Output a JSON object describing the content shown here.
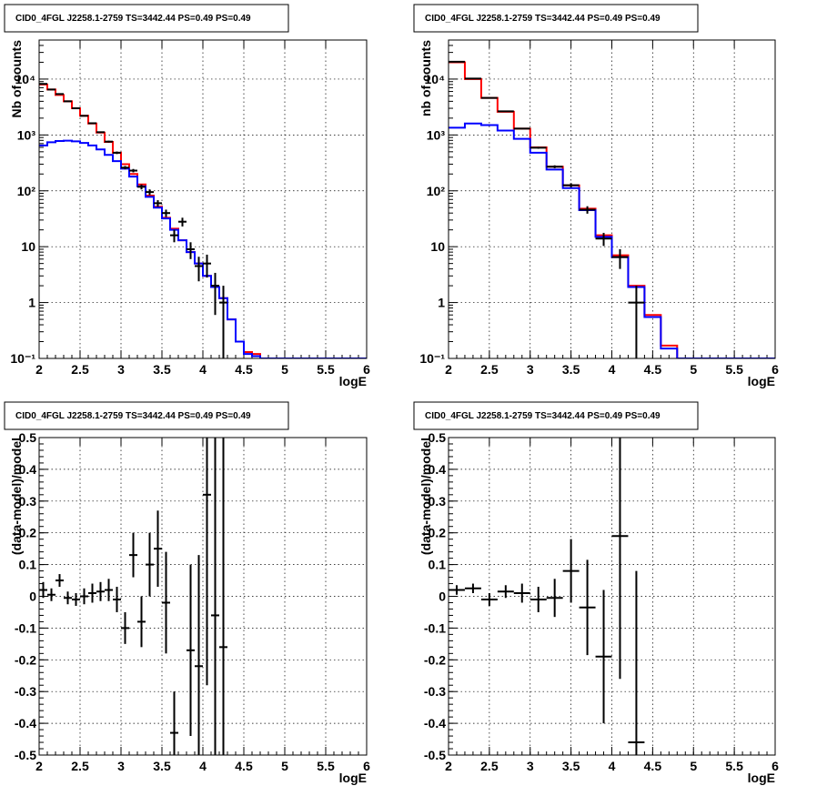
{
  "colors": {
    "model_total": "#ff0000",
    "model_source": "#0000ff",
    "data": "#000000"
  },
  "chart_data": [
    {
      "type": "line",
      "title": "CID0_4FGL J2258.1-2759 TS=3442.44 PS=0.49 PS=0.49",
      "xlabel": "logE",
      "ylabel": "Nb of counts",
      "xlim": [
        2,
        6
      ],
      "ylim": [
        0.1,
        50000
      ],
      "yscale": "log",
      "grid": true,
      "x_ticks": [
        "2",
        "2.5",
        "3",
        "3.5",
        "4",
        "4.5",
        "5",
        "5.5",
        "6"
      ],
      "y_ticks": [
        "10⁻¹",
        "1",
        "10",
        "10²",
        "10³",
        "10⁴"
      ],
      "series": [
        {
          "color": "red",
          "style": "step",
          "bin_edges": [
            2.0,
            2.1,
            2.2,
            2.3,
            2.4,
            2.5,
            2.6,
            2.7,
            2.8,
            2.9,
            3.0,
            3.1,
            3.2,
            3.3,
            3.4,
            3.5,
            3.6,
            3.7,
            3.8,
            3.9,
            4.0,
            4.1,
            4.2,
            4.3,
            4.4,
            4.5,
            4.6,
            4.7,
            4.8,
            4.9,
            5.0,
            5.1,
            5.2,
            5.3,
            5.4,
            5.5,
            5.6,
            5.7,
            5.8,
            5.9,
            6.0
          ],
          "values": [
            8000,
            6500,
            5200,
            4000,
            3000,
            2200,
            1600,
            1100,
            750,
            480,
            300,
            200,
            130,
            82,
            52,
            33,
            21,
            13,
            8,
            5,
            3,
            1.9,
            1.2,
            0.5,
            0.2,
            0.13,
            0.12,
            0.1,
            0.1,
            0.1,
            0.1,
            0.1,
            0.1,
            0.1,
            0.1,
            0.1,
            0.1,
            0.1,
            0.1,
            0.1
          ]
        },
        {
          "color": "blue",
          "style": "step",
          "bin_edges": [
            2.0,
            2.1,
            2.2,
            2.3,
            2.4,
            2.5,
            2.6,
            2.7,
            2.8,
            2.9,
            3.0,
            3.1,
            3.2,
            3.3,
            3.4,
            3.5,
            3.6,
            3.7,
            3.8,
            3.9,
            4.0,
            4.1,
            4.2,
            4.3,
            4.4,
            4.5,
            4.6,
            4.7,
            4.8,
            4.9,
            5.0,
            5.1,
            5.2,
            5.3,
            5.4,
            5.5,
            5.6,
            5.7,
            5.8,
            5.9,
            6.0
          ],
          "values": [
            650,
            740,
            780,
            790,
            770,
            720,
            650,
            550,
            440,
            340,
            250,
            180,
            120,
            78,
            50,
            32,
            20,
            13,
            8,
            5,
            3,
            1.9,
            1.2,
            0.5,
            0.2,
            0.12,
            0.11,
            0.1,
            0.1,
            0.1,
            0.1,
            0.1,
            0.1,
            0.1,
            0.1,
            0.1,
            0.1,
            0.1,
            0.1,
            0.1
          ]
        },
        {
          "color": "black",
          "style": "errorbar",
          "points": [
            {
              "x": 2.05,
              "y": 8200,
              "err": 100,
              "xerr": 0.05
            },
            {
              "x": 2.15,
              "y": 6500,
              "err": 90,
              "xerr": 0.05
            },
            {
              "x": 2.25,
              "y": 5400,
              "err": 80,
              "xerr": 0.05
            },
            {
              "x": 2.35,
              "y": 4000,
              "err": 70,
              "xerr": 0.05
            },
            {
              "x": 2.45,
              "y": 3000,
              "err": 60,
              "xerr": 0.05
            },
            {
              "x": 2.55,
              "y": 2200,
              "err": 50,
              "xerr": 0.05
            },
            {
              "x": 2.65,
              "y": 1620,
              "err": 45,
              "xerr": 0.05
            },
            {
              "x": 2.75,
              "y": 1120,
              "err": 35,
              "xerr": 0.05
            },
            {
              "x": 2.85,
              "y": 760,
              "err": 30,
              "xerr": 0.05
            },
            {
              "x": 2.95,
              "y": 480,
              "err": 25,
              "xerr": 0.05
            },
            {
              "x": 3.05,
              "y": 260,
              "err": 18,
              "xerr": 0.05
            },
            {
              "x": 3.15,
              "y": 230,
              "err": 16,
              "xerr": 0.05
            },
            {
              "x": 3.25,
              "y": 118,
              "err": 12,
              "xerr": 0.05
            },
            {
              "x": 3.35,
              "y": 95,
              "err": 11,
              "xerr": 0.05
            },
            {
              "x": 3.45,
              "y": 60,
              "err": 8,
              "xerr": 0.05
            },
            {
              "x": 3.55,
              "y": 40,
              "err": 6,
              "xerr": 0.05
            },
            {
              "x": 3.65,
              "y": 16,
              "err": 4,
              "xerr": 0.05
            },
            {
              "x": 3.75,
              "y": 28,
              "err": 5,
              "xerr": 0.05
            },
            {
              "x": 3.85,
              "y": 9,
              "err": 3,
              "xerr": 0.05
            },
            {
              "x": 3.95,
              "y": 4.5,
              "err": 2.1,
              "xerr": 0.05
            },
            {
              "x": 4.05,
              "y": 5,
              "err": 2.2,
              "xerr": 0.05
            },
            {
              "x": 4.15,
              "y": 2,
              "err": 1.4,
              "xerr": 0.05
            },
            {
              "x": 4.25,
              "y": 1,
              "err": 1,
              "xerr": 0.05
            }
          ]
        }
      ]
    },
    {
      "type": "line",
      "title": "CID0_4FGL J2258.1-2759 TS=3442.44 PS=0.49 PS=0.49",
      "xlabel": "logE",
      "ylabel": "nb of counts",
      "xlim": [
        2,
        6
      ],
      "ylim": [
        0.1,
        50000
      ],
      "yscale": "log",
      "grid": true,
      "x_ticks": [
        "2",
        "2.5",
        "3",
        "3.5",
        "4",
        "4.5",
        "5",
        "5.5",
        "6"
      ],
      "y_ticks": [
        "10⁻¹",
        "1",
        "10",
        "10²",
        "10³",
        "10⁴"
      ],
      "series": [
        {
          "color": "red",
          "style": "step",
          "bin_edges": [
            2.0,
            2.2,
            2.4,
            2.6,
            2.8,
            3.0,
            3.2,
            3.4,
            3.6,
            3.8,
            4.0,
            4.2,
            4.4,
            4.6,
            4.8,
            5.0,
            5.2,
            5.4,
            5.6,
            5.8,
            6.0
          ],
          "values": [
            20000,
            10000,
            4600,
            2600,
            1300,
            600,
            270,
            125,
            48,
            16,
            7,
            2,
            0.6,
            0.17,
            0.1,
            0.1,
            0.1,
            0.1,
            0.1,
            0.1
          ]
        },
        {
          "color": "blue",
          "style": "step",
          "bin_edges": [
            2.0,
            2.2,
            2.4,
            2.6,
            2.8,
            3.0,
            3.2,
            3.4,
            3.6,
            3.8,
            4.0,
            4.2,
            4.4,
            4.6,
            4.8,
            5.0,
            5.2,
            5.4,
            5.6,
            5.8,
            6.0
          ],
          "values": [
            1350,
            1600,
            1500,
            1200,
            850,
            480,
            240,
            112,
            45,
            15,
            6.5,
            1.9,
            0.55,
            0.15,
            0.1,
            0.1,
            0.1,
            0.1,
            0.1,
            0.1
          ]
        },
        {
          "color": "black",
          "style": "errorbar",
          "points": [
            {
              "x": 2.1,
              "y": 20400,
              "err": 150,
              "xerr": 0.1
            },
            {
              "x": 2.3,
              "y": 10200,
              "err": 100,
              "xerr": 0.1
            },
            {
              "x": 2.5,
              "y": 4600,
              "err": 70,
              "xerr": 0.1
            },
            {
              "x": 2.7,
              "y": 2650,
              "err": 50,
              "xerr": 0.1
            },
            {
              "x": 2.9,
              "y": 1300,
              "err": 36,
              "xerr": 0.1
            },
            {
              "x": 3.1,
              "y": 590,
              "err": 24,
              "xerr": 0.1
            },
            {
              "x": 3.3,
              "y": 270,
              "err": 16,
              "xerr": 0.1
            },
            {
              "x": 3.5,
              "y": 126,
              "err": 11,
              "xerr": 0.1
            },
            {
              "x": 3.7,
              "y": 46,
              "err": 7,
              "xerr": 0.1
            },
            {
              "x": 3.9,
              "y": 14,
              "err": 3.7,
              "xerr": 0.1
            },
            {
              "x": 4.1,
              "y": 6.5,
              "err": 2.5,
              "xerr": 0.1
            },
            {
              "x": 4.3,
              "y": 1,
              "err": 1,
              "xerr": 0.1
            }
          ]
        }
      ]
    },
    {
      "type": "scatter",
      "title": "CID0_4FGL J2258.1-2759 TS=3442.44 PS=0.49 PS=0.49",
      "xlabel": "logE",
      "ylabel": "(data-model)/model",
      "xlim": [
        2,
        6
      ],
      "ylim": [
        -0.5,
        0.5
      ],
      "grid": true,
      "x_ticks": [
        "2",
        "2.5",
        "3",
        "3.5",
        "4",
        "4.5",
        "5",
        "5.5",
        "6"
      ],
      "y_ticks": [
        "-0.5",
        "-0.4",
        "-0.3",
        "-0.2",
        "-0.1",
        "0",
        "0.1",
        "0.2",
        "0.3",
        "0.4",
        "0.5"
      ],
      "series": [
        {
          "color": "black",
          "style": "errorbar",
          "points": [
            {
              "x": 2.05,
              "y": 0.02,
              "err": 0.025,
              "xerr": 0.05
            },
            {
              "x": 2.15,
              "y": 0.005,
              "err": 0.02,
              "xerr": 0.05
            },
            {
              "x": 2.25,
              "y": 0.05,
              "err": 0.02,
              "xerr": 0.05
            },
            {
              "x": 2.35,
              "y": -0.005,
              "err": 0.02,
              "xerr": 0.05
            },
            {
              "x": 2.45,
              "y": -0.01,
              "err": 0.02,
              "xerr": 0.05
            },
            {
              "x": 2.55,
              "y": 0,
              "err": 0.025,
              "xerr": 0.05
            },
            {
              "x": 2.65,
              "y": 0.01,
              "err": 0.03,
              "xerr": 0.05
            },
            {
              "x": 2.75,
              "y": 0.015,
              "err": 0.03,
              "xerr": 0.05
            },
            {
              "x": 2.85,
              "y": 0.02,
              "err": 0.035,
              "xerr": 0.05
            },
            {
              "x": 2.95,
              "y": -0.01,
              "err": 0.04,
              "xerr": 0.05
            },
            {
              "x": 3.05,
              "y": -0.1,
              "err": 0.05,
              "xerr": 0.05
            },
            {
              "x": 3.15,
              "y": 0.13,
              "err": 0.07,
              "xerr": 0.05
            },
            {
              "x": 3.25,
              "y": -0.08,
              "err": 0.08,
              "xerr": 0.05
            },
            {
              "x": 3.35,
              "y": 0.1,
              "err": 0.1,
              "xerr": 0.05
            },
            {
              "x": 3.45,
              "y": 0.15,
              "err": 0.12,
              "xerr": 0.05
            },
            {
              "x": 3.55,
              "y": -0.02,
              "err": 0.16,
              "xerr": 0.05
            },
            {
              "x": 3.65,
              "y": -0.43,
              "err": 0.13,
              "xerr": 0.05
            },
            {
              "x": 3.85,
              "y": -0.17,
              "err": 0.27,
              "xerr": 0.05
            },
            {
              "x": 3.95,
              "y": -0.22,
              "err": 0.35,
              "xerr": 0.05
            },
            {
              "x": 4.05,
              "y": 0.32,
              "err": 0.6,
              "xerr": 0.05
            },
            {
              "x": 4.15,
              "y": -0.06,
              "err": 0.9,
              "xerr": 0.05
            },
            {
              "x": 4.25,
              "y": -0.16,
              "err": 1.0,
              "xerr": 0.05
            }
          ]
        }
      ]
    },
    {
      "type": "scatter",
      "title": "CID0_4FGL J2258.1-2759 TS=3442.44 PS=0.49 PS=0.49",
      "xlabel": "logE",
      "ylabel": "(data-model)/model",
      "xlim": [
        2,
        6
      ],
      "ylim": [
        -0.5,
        0.5
      ],
      "grid": true,
      "x_ticks": [
        "2",
        "2.5",
        "3",
        "3.5",
        "4",
        "4.5",
        "5",
        "5.5",
        "6"
      ],
      "y_ticks": [
        "-0.5",
        "-0.4",
        "-0.3",
        "-0.2",
        "-0.1",
        "0",
        "0.1",
        "0.2",
        "0.3",
        "0.4",
        "0.5"
      ],
      "series": [
        {
          "color": "black",
          "style": "errorbar",
          "points": [
            {
              "x": 2.1,
              "y": 0.02,
              "err": 0.015,
              "xerr": 0.1
            },
            {
              "x": 2.3,
              "y": 0.025,
              "err": 0.015,
              "xerr": 0.1
            },
            {
              "x": 2.5,
              "y": -0.01,
              "err": 0.02,
              "xerr": 0.1
            },
            {
              "x": 2.7,
              "y": 0.015,
              "err": 0.02,
              "xerr": 0.1
            },
            {
              "x": 2.9,
              "y": 0.01,
              "err": 0.03,
              "xerr": 0.1
            },
            {
              "x": 3.1,
              "y": -0.01,
              "err": 0.04,
              "xerr": 0.1
            },
            {
              "x": 3.3,
              "y": -0.005,
              "err": 0.06,
              "xerr": 0.1
            },
            {
              "x": 3.5,
              "y": 0.08,
              "err": 0.1,
              "xerr": 0.1
            },
            {
              "x": 3.7,
              "y": -0.035,
              "err": 0.15,
              "xerr": 0.1
            },
            {
              "x": 3.9,
              "y": -0.19,
              "err": 0.21,
              "xerr": 0.1
            },
            {
              "x": 4.1,
              "y": 0.19,
              "err": 0.45,
              "xerr": 0.1
            },
            {
              "x": 4.3,
              "y": -0.46,
              "err": 0.54,
              "xerr": 0.1
            }
          ]
        }
      ]
    }
  ]
}
